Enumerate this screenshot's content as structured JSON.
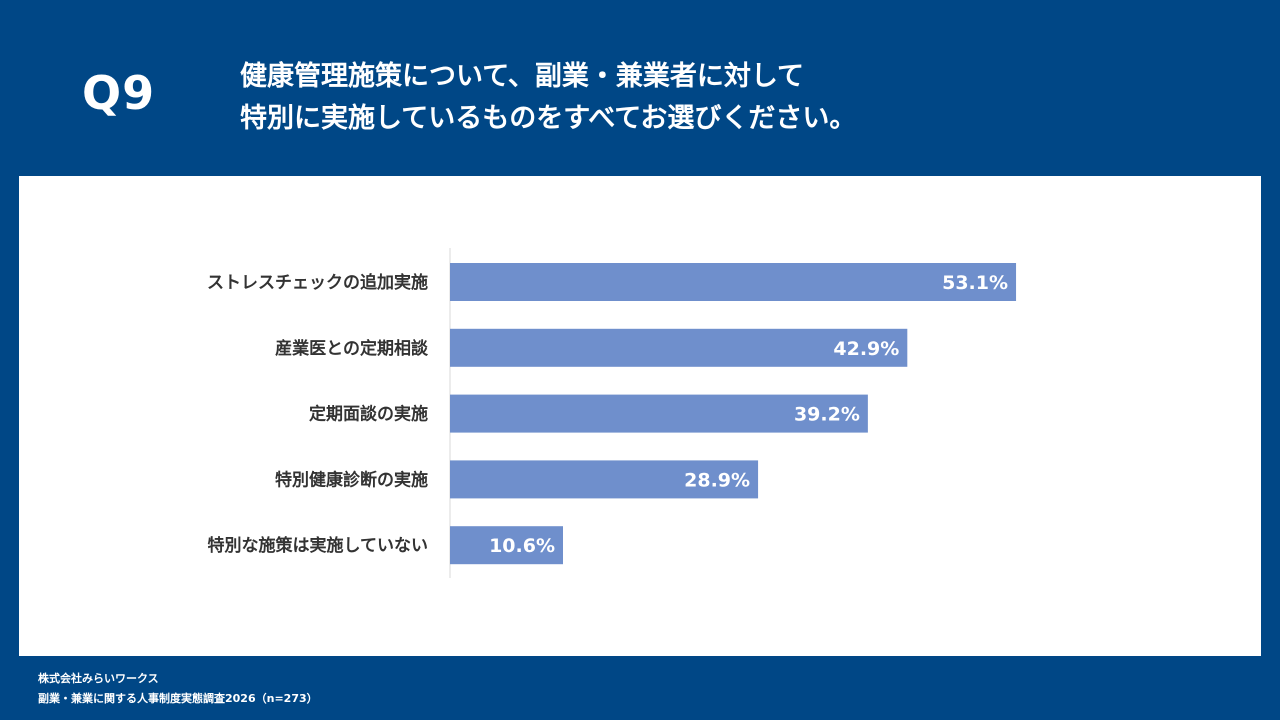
{
  "question": {
    "number": "Q9",
    "title_line1": "健康管理施策について、副業・兼業者に対して",
    "title_line2": "特別に実施しているものをすべてお選びください。"
  },
  "colors": {
    "background": "#004786",
    "panel": "#ffffff",
    "bar": "#6f8fcc",
    "bar_label": "#ffffff",
    "category_label": "#333333",
    "axis": "#d9d9d9"
  },
  "chart_data": {
    "type": "bar",
    "orientation": "horizontal",
    "categories": [
      "ストレスチェックの追加実施",
      "産業医との定期相談",
      "定期面談の実施",
      "特別健康診断の実施",
      "特別な施策は実施していない"
    ],
    "values": [
      53.1,
      42.9,
      39.2,
      28.9,
      10.6
    ],
    "value_labels": [
      "53.1%",
      "42.9%",
      "39.2%",
      "28.9%",
      "10.6%"
    ],
    "xlim": [
      0,
      100
    ],
    "grid": false,
    "legend": "none"
  },
  "footer": {
    "company": "株式会社みらいワークス",
    "survey": "副業・兼業に関する人事制度実態調査2026（n=273）"
  }
}
